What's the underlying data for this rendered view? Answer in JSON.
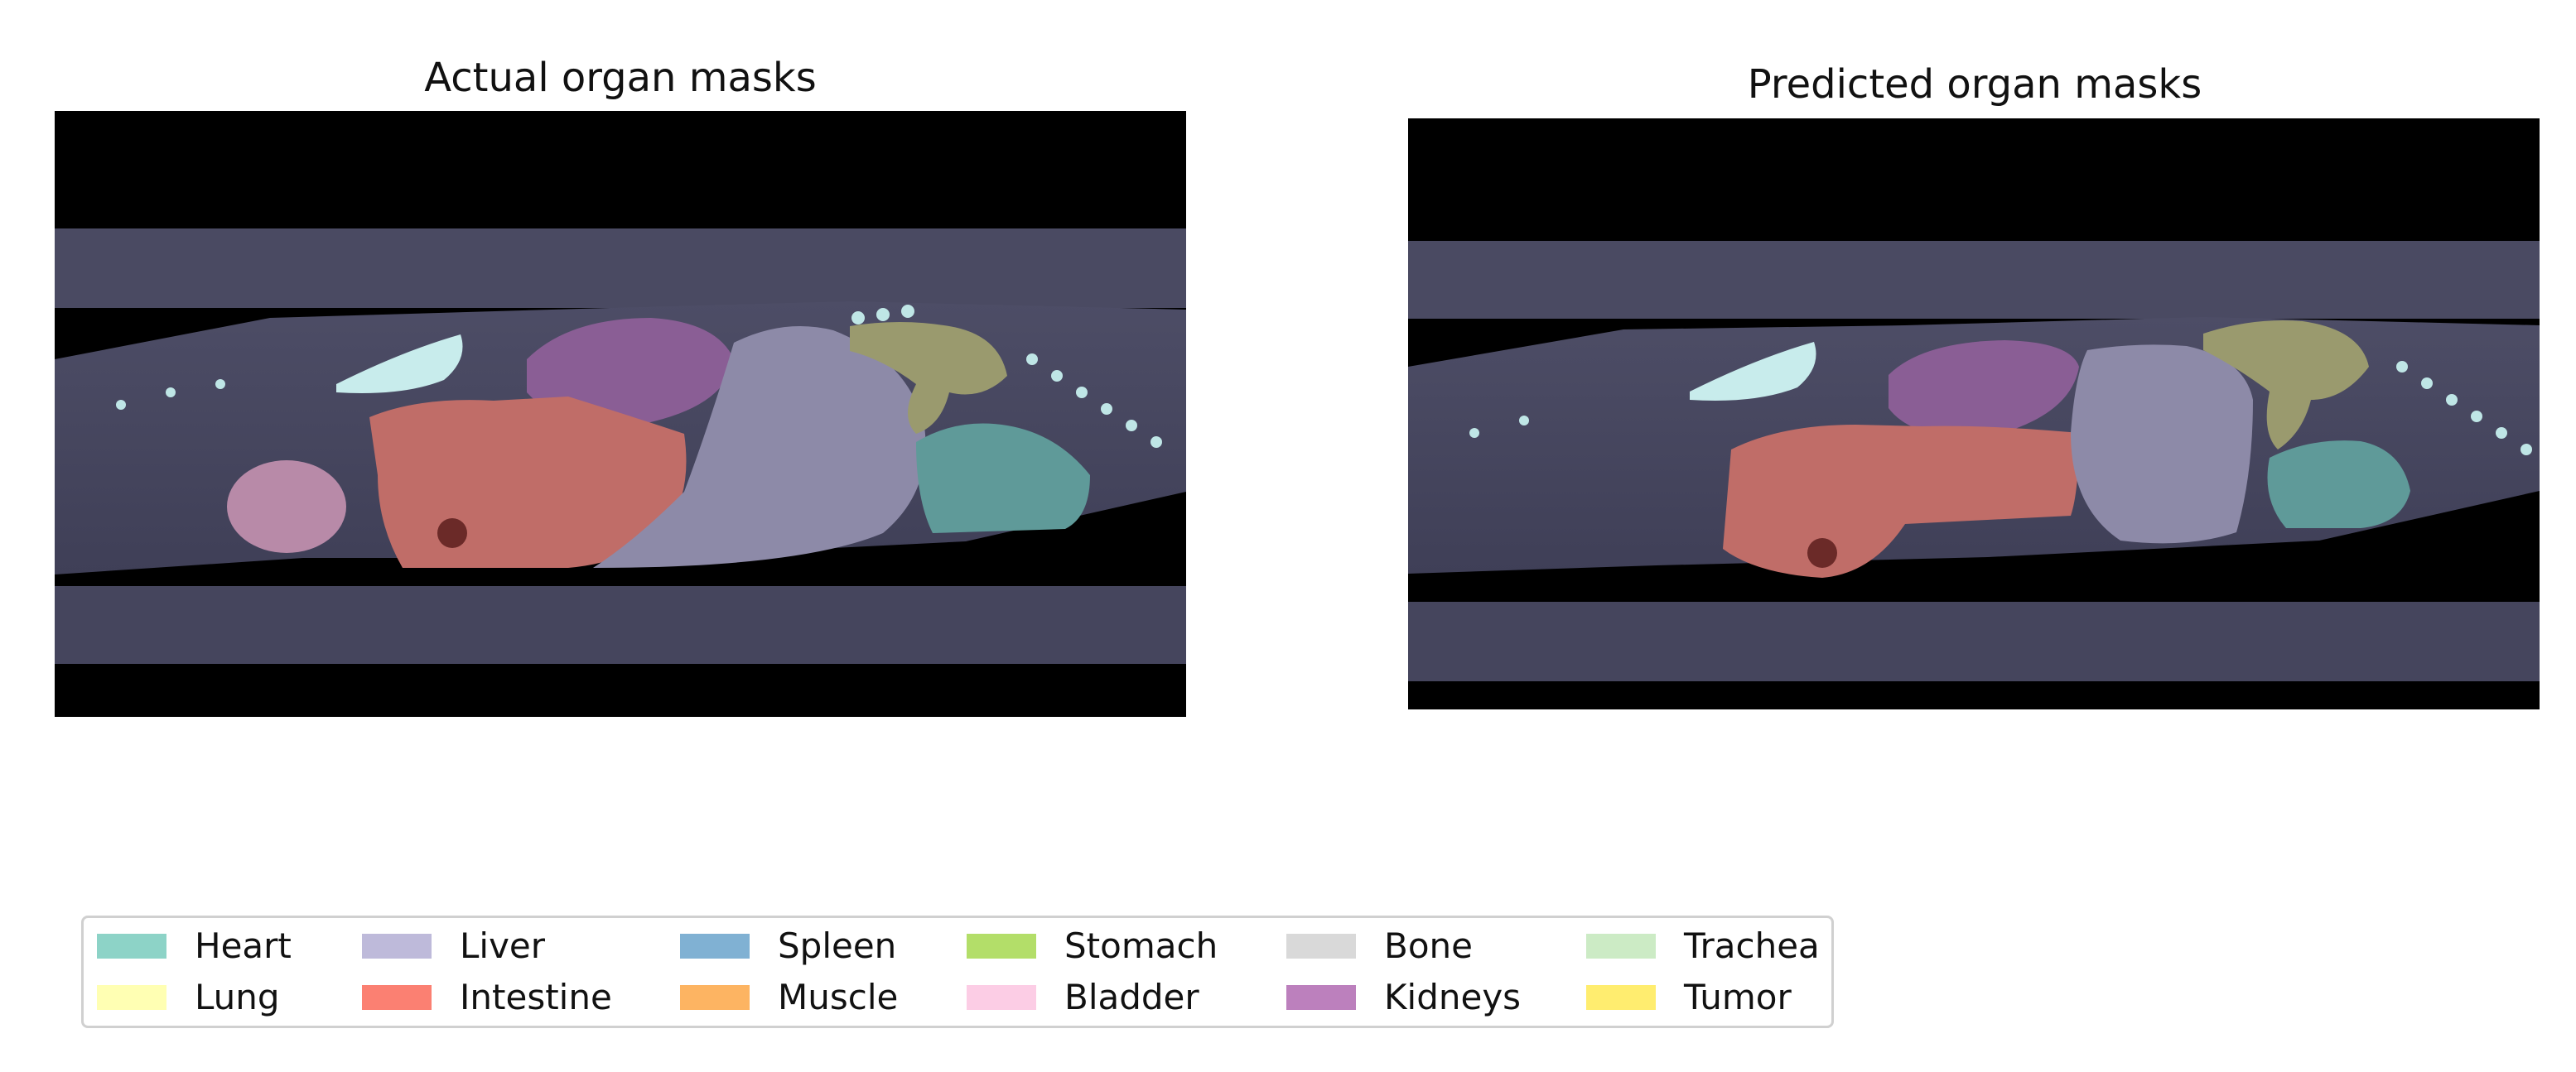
{
  "panels": [
    {
      "title": "Actual organ masks"
    },
    {
      "title": "Predicted organ masks"
    }
  ],
  "legend": [
    {
      "label": "Heart",
      "color": "#8dd3c7"
    },
    {
      "label": "Lung",
      "color": "#ffffb3"
    },
    {
      "label": "Liver",
      "color": "#bebada"
    },
    {
      "label": "Intestine",
      "color": "#fb8072"
    },
    {
      "label": "Spleen",
      "color": "#80b1d3"
    },
    {
      "label": "Muscle",
      "color": "#fdb462"
    },
    {
      "label": "Stomach",
      "color": "#b3de69"
    },
    {
      "label": "Bladder",
      "color": "#fccde5"
    },
    {
      "label": "Bone",
      "color": "#d9d9d9"
    },
    {
      "label": "Kidneys",
      "color": "#bc80bd"
    },
    {
      "label": "Trachea",
      "color": "#ccebc5"
    },
    {
      "label": "Tumor",
      "color": "#ffed6f"
    }
  ]
}
